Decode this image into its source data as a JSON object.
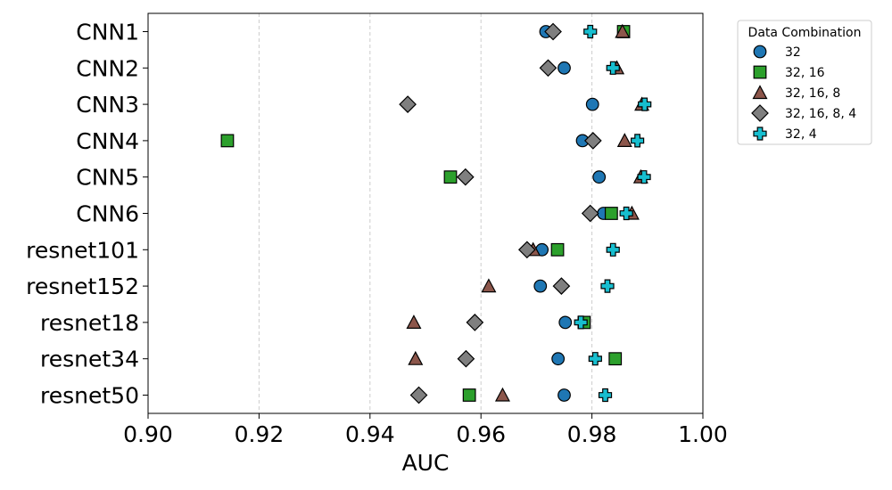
{
  "chart_data": {
    "type": "scatter",
    "xlabel": "AUC",
    "ylabel": "",
    "xlim": [
      0.9,
      1.0
    ],
    "xticks": [
      "0.90",
      "0.92",
      "0.94",
      "0.96",
      "0.98",
      "1.00"
    ],
    "xtick_values": [
      0.9,
      0.92,
      0.94,
      0.96,
      0.98,
      1.0
    ],
    "vertical_grid": "dashed",
    "legend_placement": "outside upper right",
    "categories": [
      "CNN1",
      "CNN2",
      "CNN3",
      "CNN4",
      "CNN5",
      "CNN6",
      "resnet101",
      "resnet152",
      "resnet18",
      "resnet34",
      "resnet50"
    ],
    "legend_title": "Data Combination",
    "series": [
      {
        "name": "32",
        "marker": "circle",
        "color": "#1f77b4",
        "values": [
          0.9717,
          0.975,
          0.9801,
          0.9783,
          0.9813,
          0.9821,
          0.971,
          0.9707,
          0.9752,
          0.9739,
          0.975
        ]
      },
      {
        "name": "32, 16",
        "marker": "square",
        "color": "#2ca02c",
        "values": [
          0.9857,
          null,
          null,
          0.9143,
          0.9545,
          0.9835,
          0.9738,
          null,
          0.9786,
          0.9842,
          0.9579
        ]
      },
      {
        "name": "32, 16, 8",
        "marker": "triangle",
        "color": "#8c564b",
        "values": [
          0.9855,
          0.9845,
          0.989,
          0.9859,
          0.9888,
          0.9872,
          0.9694,
          0.9614,
          0.9479,
          0.9482,
          0.9639
        ]
      },
      {
        "name": "32, 16, 8, 4",
        "marker": "diamond",
        "color": "#7f7f7f",
        "values": [
          0.973,
          0.9721,
          0.9468,
          0.9802,
          0.9572,
          0.9797,
          0.9683,
          0.9745,
          0.9589,
          0.9573,
          0.9488
        ]
      },
      {
        "name": "32, 4",
        "marker": "plus",
        "color": "#17becf",
        "values": [
          0.9797,
          0.9838,
          0.9895,
          0.9882,
          0.9894,
          0.9862,
          0.9838,
          0.9828,
          0.978,
          0.9806,
          0.9824
        ]
      }
    ]
  }
}
